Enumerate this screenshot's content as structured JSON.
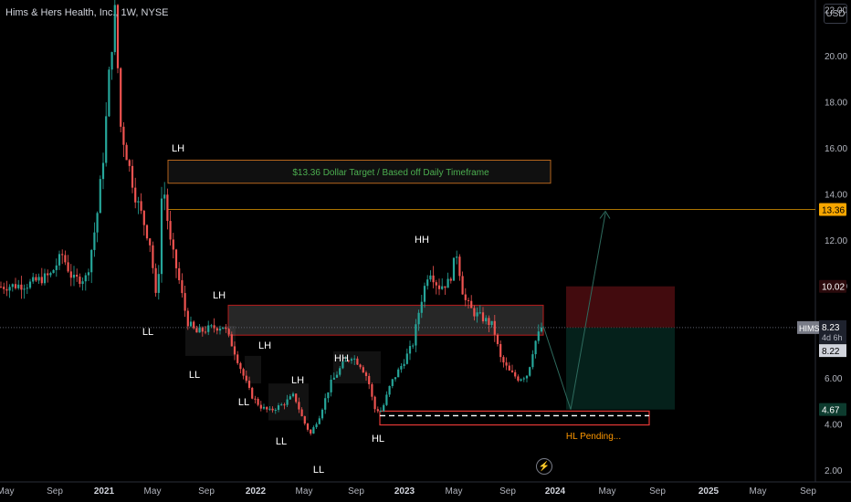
{
  "header": {
    "symbol_title": "Hims & Hers Health, Inc., 1W, NYSE",
    "currency": "USD"
  },
  "colors": {
    "up": "#26a69a",
    "down": "#ef5350",
    "bg": "#000000",
    "axis_text": "#b2b5be",
    "target": "#f7a600",
    "accent_red": "#e53935"
  },
  "price_scale": {
    "ticks": [
      "22.00",
      "20.00",
      "18.00",
      "16.00",
      "14.00",
      "12.00",
      "10.00",
      "8.00",
      "6.00",
      "4.00",
      "2.00"
    ],
    "labels": {
      "target": "13.36",
      "stop": "10.02",
      "symbol": "HIMS",
      "last": "8.23",
      "countdown": "4d 6h",
      "prev": "8.22",
      "tp": "4.67"
    }
  },
  "time_axis": [
    "May",
    "Sep",
    "2021",
    "May",
    "Sep",
    "2022",
    "May",
    "Sep",
    "2023",
    "May",
    "Sep",
    "2024",
    "May",
    "Sep",
    "2025",
    "May",
    "Sep"
  ],
  "annotations": {
    "target_box_text": "$13.36 Dollar Target / Based off Daily Timeframe",
    "hl_pending": "HL Pending...",
    "swing_labels": [
      "LH",
      "LL",
      "LH",
      "LL",
      "LH",
      "LL",
      "LH",
      "LL",
      "HH",
      "HL",
      "LL",
      "HH"
    ]
  },
  "chart_data": {
    "type": "candlestick",
    "title": "Hims & Hers Health, Inc., 1W, NYSE",
    "x_ticks": [
      "May",
      "Sep",
      "2021",
      "May",
      "Sep",
      "2022",
      "May",
      "Sep",
      "2023",
      "May",
      "Sep",
      "2024",
      "May",
      "Sep",
      "2025",
      "May",
      "Sep"
    ],
    "ylim": [
      2.0,
      22.0
    ],
    "approx_close_path": [
      {
        "x": "2020-05",
        "close": 10.0
      },
      {
        "x": "2020-09",
        "close": 10.2
      },
      {
        "x": "2021-01",
        "close": 15.0
      },
      {
        "x": "2021-02",
        "close": 22.0
      },
      {
        "x": "2021-04",
        "close": 14.0
      },
      {
        "x": "2021-06",
        "close": 13.5
      },
      {
        "x": "2021-09",
        "close": 7.5
      },
      {
        "x": "2022-01",
        "close": 5.0
      },
      {
        "x": "2022-05",
        "close": 3.5
      },
      {
        "x": "2022-09",
        "close": 6.5
      },
      {
        "x": "2022-11",
        "close": 4.5
      },
      {
        "x": "2023-01",
        "close": 7.5
      },
      {
        "x": "2023-05",
        "close": 11.0
      },
      {
        "x": "2023-08",
        "close": 7.0
      },
      {
        "x": "2023-10",
        "close": 5.8
      },
      {
        "x": "2023-11",
        "close": 8.23
      }
    ],
    "levels": {
      "target": 13.36,
      "stop": 10.02,
      "last": 8.23,
      "tp": 4.67
    },
    "zones": [
      {
        "name": "target-box",
        "low": 14.5,
        "high": 15.5
      },
      {
        "name": "resistance-zone",
        "low": 7.9,
        "high": 9.2
      },
      {
        "name": "hl-pending-zone",
        "low": 4.0,
        "high": 4.6
      }
    ]
  }
}
